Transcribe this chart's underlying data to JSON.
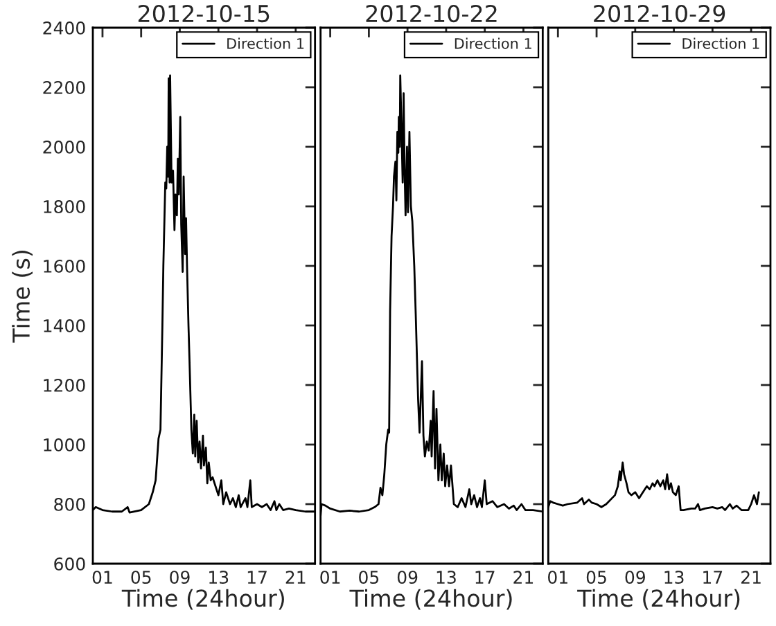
{
  "chart_data": [
    {
      "type": "line",
      "title": "2012-10-15",
      "xlabel": "Time (24hour)",
      "ylabel": "Time (s)",
      "xlim": [
        0,
        23
      ],
      "ylim": [
        600,
        2400
      ],
      "xticks": [
        {
          "value": 1,
          "label": "01"
        },
        {
          "value": 5,
          "label": "05"
        },
        {
          "value": 9,
          "label": "09"
        },
        {
          "value": 13,
          "label": "13"
        },
        {
          "value": 17,
          "label": "17"
        },
        {
          "value": 21,
          "label": "21"
        }
      ],
      "yticks": [
        600,
        800,
        1000,
        1200,
        1400,
        1600,
        1800,
        2000,
        2200,
        2400
      ],
      "legend": "top right",
      "series": [
        {
          "name": "Direction 1",
          "color": "#000000",
          "x": [
            0,
            0.3,
            1,
            2,
            3,
            3.6,
            3.8,
            5,
            5.8,
            6.2,
            6.5,
            6.8,
            7.0,
            7.2,
            7.3,
            7.5,
            7.6,
            7.7,
            7.8,
            7.85,
            7.95,
            8.0,
            8.15,
            8.3,
            8.45,
            8.55,
            8.7,
            8.8,
            8.9,
            9.05,
            9.15,
            9.3,
            9.4,
            9.55,
            9.65,
            9.75,
            9.9,
            10.0,
            10.2,
            10.35,
            10.5,
            10.6,
            10.75,
            10.9,
            11.05,
            11.2,
            11.4,
            11.5,
            11.7,
            11.85,
            12.0,
            12.2,
            12.4,
            12.7,
            13.0,
            13.3,
            13.5,
            13.8,
            14.2,
            14.5,
            14.8,
            15.1,
            15.3,
            15.8,
            16.0,
            16.3,
            16.45,
            17,
            17.5,
            18,
            18.4,
            18.8,
            19,
            19.3,
            19.7,
            20.3,
            21,
            22,
            23
          ],
          "values": [
            780,
            790,
            780,
            775,
            775,
            790,
            772,
            780,
            800,
            840,
            880,
            1020,
            1050,
            1400,
            1600,
            1880,
            1860,
            2000,
            1900,
            2230,
            1880,
            2240,
            1880,
            1920,
            1720,
            1840,
            1770,
            1960,
            1840,
            2100,
            1740,
            1580,
            1900,
            1640,
            1760,
            1600,
            1400,
            1290,
            1050,
            970,
            1100,
            960,
            1080,
            940,
            1010,
            920,
            1030,
            930,
            990,
            870,
            940,
            880,
            890,
            860,
            830,
            880,
            800,
            840,
            800,
            820,
            790,
            830,
            790,
            820,
            790,
            880,
            790,
            800,
            790,
            800,
            780,
            810,
            780,
            800,
            780,
            785,
            780,
            775,
            775
          ]
        }
      ]
    },
    {
      "type": "line",
      "title": "2012-10-22",
      "xlabel": "Time (24hour)",
      "xlim": [
        0,
        23
      ],
      "ylim": [
        600,
        2400
      ],
      "xticks": [
        {
          "value": 1,
          "label": "01"
        },
        {
          "value": 5,
          "label": "05"
        },
        {
          "value": 9,
          "label": "09"
        },
        {
          "value": 13,
          "label": "13"
        },
        {
          "value": 17,
          "label": "17"
        },
        {
          "value": 21,
          "label": "21"
        }
      ],
      "yticks": [
        600,
        800,
        1000,
        1200,
        1400,
        1600,
        1800,
        2000,
        2200,
        2400
      ],
      "legend": "top right",
      "tick_labels": "x",
      "series": [
        {
          "name": "Direction 1",
          "color": "#000000",
          "x": [
            0,
            0.1,
            0.5,
            1,
            2,
            3,
            4,
            5,
            5.6,
            6.0,
            6.2,
            6.4,
            6.6,
            6.8,
            7.0,
            7.1,
            7.2,
            7.35,
            7.5,
            7.6,
            7.75,
            7.85,
            7.95,
            8.05,
            8.1,
            8.2,
            8.25,
            8.4,
            8.5,
            8.6,
            8.7,
            8.8,
            8.95,
            9.05,
            9.2,
            9.35,
            9.5,
            9.7,
            9.85,
            10.1,
            10.25,
            10.5,
            10.65,
            10.8,
            11.0,
            11.2,
            11.4,
            11.5,
            11.7,
            11.85,
            12.0,
            12.2,
            12.4,
            12.55,
            12.75,
            12.9,
            13.1,
            13.3,
            13.5,
            13.8,
            14.2,
            14.6,
            15.0,
            15.4,
            15.6,
            15.9,
            16.2,
            16.5,
            16.7,
            17.0,
            17.2,
            17.8,
            18.3,
            19,
            19.5,
            20,
            20.3,
            20.8,
            21.2,
            22,
            23
          ],
          "values": [
            760,
            800,
            795,
            785,
            775,
            778,
            775,
            780,
            790,
            800,
            855,
            830,
            900,
            1000,
            1050,
            1040,
            1450,
            1700,
            1800,
            1900,
            1950,
            1820,
            2050,
            1980,
            2100,
            2000,
            2240,
            2030,
            1880,
            2180,
            1920,
            1770,
            2000,
            1780,
            2050,
            1800,
            1750,
            1600,
            1440,
            1150,
            1040,
            1280,
            1030,
            960,
            1010,
            980,
            1080,
            960,
            1180,
            920,
            1120,
            880,
            1000,
            880,
            970,
            860,
            930,
            860,
            930,
            800,
            790,
            820,
            790,
            850,
            800,
            830,
            790,
            820,
            790,
            880,
            800,
            810,
            790,
            800,
            785,
            795,
            780,
            800,
            780,
            780,
            775
          ]
        }
      ]
    },
    {
      "type": "line",
      "title": "2012-10-29",
      "xlabel": "Time (24hour)",
      "xlim": [
        0,
        23
      ],
      "ylim": [
        600,
        2400
      ],
      "xticks": [
        {
          "value": 1,
          "label": "01"
        },
        {
          "value": 5,
          "label": "05"
        },
        {
          "value": 9,
          "label": "09"
        },
        {
          "value": 13,
          "label": "13"
        },
        {
          "value": 17,
          "label": "17"
        },
        {
          "value": 21,
          "label": "21"
        }
      ],
      "yticks": [
        600,
        800,
        1000,
        1200,
        1400,
        1600,
        1800,
        2000,
        2200,
        2400
      ],
      "legend": "top right",
      "tick_labels": "x",
      "series": [
        {
          "name": "Direction 1",
          "color": "#000000",
          "x": [
            0,
            0.2,
            0.5,
            1,
            1.5,
            2,
            3,
            3.5,
            3.7,
            4.2,
            4.5,
            5,
            5.5,
            6,
            6.6,
            6.9,
            7.2,
            7.4,
            7.5,
            7.7,
            7.85,
            8.1,
            8.3,
            8.6,
            9.0,
            9.4,
            9.8,
            10.2,
            10.5,
            10.8,
            11.0,
            11.3,
            11.6,
            11.9,
            12.1,
            12.3,
            12.5,
            12.7,
            12.9,
            13.2,
            13.5,
            13.7,
            14,
            14.8,
            15.2,
            15.5,
            15.7,
            16.2,
            17,
            17.5,
            18,
            18.3,
            18.8,
            19.1,
            19.5,
            20,
            20.7,
            21,
            21.3,
            21.6,
            21.8
          ],
          "values": [
            790,
            810,
            805,
            800,
            795,
            800,
            805,
            820,
            800,
            815,
            805,
            800,
            790,
            800,
            820,
            830,
            860,
            910,
            880,
            940,
            900,
            870,
            840,
            830,
            840,
            820,
            840,
            860,
            850,
            870,
            860,
            880,
            860,
            880,
            850,
            900,
            850,
            870,
            840,
            830,
            860,
            780,
            780,
            785,
            785,
            800,
            780,
            785,
            790,
            785,
            790,
            780,
            800,
            785,
            795,
            780,
            780,
            800,
            830,
            800,
            840
          ]
        }
      ]
    }
  ]
}
